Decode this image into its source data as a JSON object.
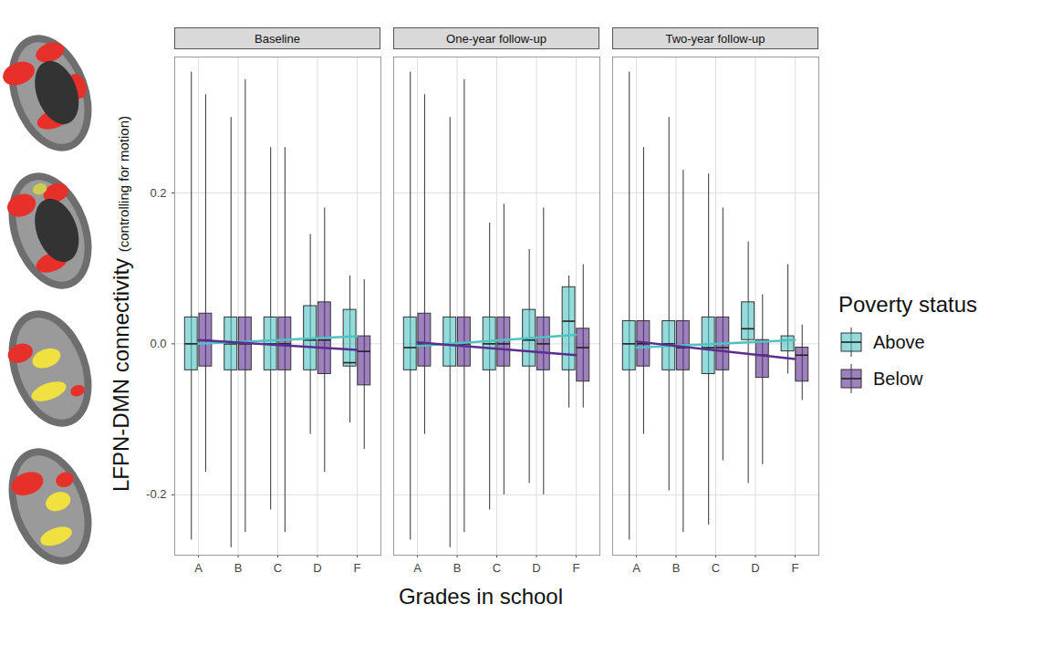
{
  "chart_data": {
    "type": "boxplot",
    "panels": [
      "Baseline",
      "One-year follow-up",
      "Two-year follow-up"
    ],
    "categories": [
      "A",
      "B",
      "C",
      "D",
      "F"
    ],
    "xlabel": "Grades in school",
    "ylabel": "LFPN-DMN connectivity (controlling for motion)",
    "ylim": [
      -0.28,
      0.38
    ],
    "yticks": [
      {
        "value": -0.2,
        "label": "-0.2"
      },
      {
        "value": 0,
        "label": "0.0"
      },
      0.2
    ],
    "grid": true,
    "legend": "right",
    "legend_title": "Poverty status",
    "series": [
      {
        "name": "Above",
        "color": "#4fc3c3",
        "panels": [
          {
            "min": [
              -0.26,
              -0.27,
              -0.22,
              -0.12,
              -0.105
            ],
            "q1": [
              -0.035,
              -0.035,
              -0.035,
              -0.035,
              -0.03
            ],
            "median": [
              0,
              0,
              0,
              0.005,
              -0.025
            ],
            "q3": [
              0.035,
              0.035,
              0.035,
              0.05,
              0.045
            ],
            "max": [
              0.36,
              0.3,
              0.26,
              0.145,
              0.09
            ],
            "trend": [
              0,
              0.01
            ]
          },
          {
            "min": [
              -0.26,
              -0.27,
              -0.22,
              -0.185,
              -0.085
            ],
            "q1": [
              -0.035,
              -0.03,
              -0.035,
              -0.03,
              -0.035
            ],
            "median": [
              -0.005,
              0,
              0,
              0.005,
              0.03
            ],
            "q3": [
              0.035,
              0.035,
              0.035,
              0.045,
              0.075
            ],
            "max": [
              0.36,
              0.3,
              0.16,
              0.125,
              0.09
            ],
            "trend": [
              -0.003,
              0.012
            ]
          },
          {
            "min": [
              -0.26,
              -0.195,
              -0.24,
              -0.185,
              -0.04
            ],
            "q1": [
              -0.035,
              -0.035,
              -0.04,
              0.005,
              -0.01
            ],
            "median": [
              0,
              0,
              -0.005,
              0.02,
              0.005
            ],
            "q3": [
              0.03,
              0.03,
              0.035,
              0.055,
              0.01
            ],
            "max": [
              0.36,
              0.3,
              0.225,
              0.135,
              0.105
            ],
            "trend": [
              -0.005,
              0.005
            ]
          }
        ]
      },
      {
        "name": "Below",
        "color": "#5c2d91",
        "panels": [
          {
            "min": [
              -0.17,
              -0.25,
              -0.25,
              -0.17,
              -0.14
            ],
            "q1": [
              -0.03,
              -0.035,
              -0.035,
              -0.04,
              -0.055
            ],
            "median": [
              0.005,
              0,
              0,
              0.005,
              -0.01
            ],
            "q3": [
              0.04,
              0.035,
              0.035,
              0.055,
              0.01
            ],
            "max": [
              0.33,
              0.35,
              0.26,
              0.18,
              0.085
            ],
            "trend": [
              0.005,
              -0.008
            ]
          },
          {
            "min": [
              -0.12,
              -0.25,
              -0.2,
              -0.2,
              -0.085
            ],
            "q1": [
              -0.03,
              -0.03,
              -0.03,
              -0.035,
              -0.05
            ],
            "median": [
              0,
              0,
              0,
              0,
              -0.005
            ],
            "q3": [
              0.04,
              0.035,
              0.035,
              0.035,
              0.02
            ],
            "max": [
              0.33,
              0.35,
              0.185,
              0.18,
              0.105
            ],
            "trend": [
              0.002,
              -0.015
            ]
          },
          {
            "min": [
              -0.12,
              -0.25,
              -0.155,
              -0.16,
              -0.075
            ],
            "q1": [
              -0.03,
              -0.035,
              -0.035,
              -0.045,
              -0.05
            ],
            "median": [
              0,
              -0.005,
              -0.005,
              -0.015,
              -0.015
            ],
            "q3": [
              0.03,
              0.03,
              0.035,
              0.005,
              -0.005
            ],
            "max": [
              0.26,
              0.23,
              0.18,
              0.065,
              0.025
            ],
            "trend": [
              0.003,
              -0.02
            ]
          }
        ]
      }
    ]
  }
}
